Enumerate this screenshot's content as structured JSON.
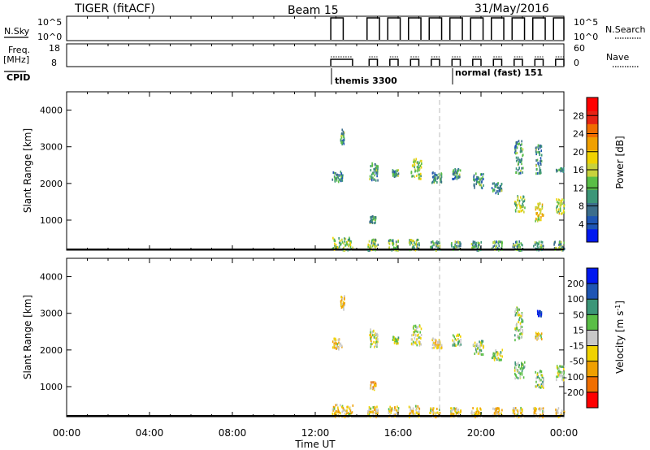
{
  "header": {
    "title": "TIGER (fitACF)",
    "beam": "Beam 15",
    "date": "31/May/2016"
  },
  "control_panels": {
    "nsky_label": "N.Sky",
    "nsearch_label": "N.Search",
    "freq_label_line1": "Freq.",
    "freq_label_line2": "[MHz]",
    "nave_label": "Nave",
    "cpid_label": "CPID",
    "nsky_ticks": [
      "10^5",
      "10^0"
    ],
    "freq_ticks": [
      "18",
      "8"
    ],
    "nave_ticks": [
      "60",
      "0"
    ],
    "cpid_modes": [
      {
        "label": "themis 3300",
        "start_hour": 12.75
      },
      {
        "label": "normal (fast) 151",
        "start_hour": 18.75
      }
    ]
  },
  "chart_data": [
    {
      "type": "heatmap",
      "panel": "power",
      "ylabel": "Slant Range [km]",
      "xlim": [
        0,
        24
      ],
      "ylim": [
        180,
        4500
      ],
      "yticks": [
        1000,
        2000,
        3000,
        4000
      ],
      "colorbar": {
        "label": "Power [dB]",
        "ticks": [
          4,
          8,
          12,
          16,
          20,
          24,
          28
        ],
        "range": [
          0,
          32
        ],
        "colors": [
          "#0018f0",
          "#1e55b4",
          "#3c6e8c",
          "#3c9678",
          "#5abe46",
          "#c8d23c",
          "#f0d200",
          "#f0a000",
          "#f06e00",
          "#e62314",
          "#ff0000"
        ]
      },
      "data_window_hours": [
        12.75,
        24.0
      ],
      "clusters": [
        {
          "t": [
            12.8,
            13.3
          ],
          "r": [
            2050,
            2350
          ],
          "level": 0.3
        },
        {
          "t": [
            13.2,
            13.4
          ],
          "r": [
            3100,
            3500
          ],
          "level": 0.3
        },
        {
          "t": [
            14.6,
            15.0
          ],
          "r": [
            2100,
            2600
          ],
          "level": 0.3
        },
        {
          "t": [
            14.6,
            14.9
          ],
          "r": [
            950,
            1150
          ],
          "level": 0.35
        },
        {
          "t": [
            15.7,
            16.0
          ],
          "r": [
            2200,
            2400
          ],
          "level": 0.3
        },
        {
          "t": [
            16.6,
            17.1
          ],
          "r": [
            2150,
            2700
          ],
          "level": 0.45
        },
        {
          "t": [
            17.6,
            18.1
          ],
          "r": [
            2050,
            2350
          ],
          "level": 0.3
        },
        {
          "t": [
            18.6,
            19.0
          ],
          "r": [
            2150,
            2450
          ],
          "level": 0.3
        },
        {
          "t": [
            19.6,
            20.1
          ],
          "r": [
            1900,
            2300
          ],
          "level": 0.3
        },
        {
          "t": [
            20.5,
            21.0
          ],
          "r": [
            1750,
            2050
          ],
          "level": 0.3
        },
        {
          "t": [
            21.6,
            22.1
          ],
          "r": [
            1250,
            1700
          ],
          "level": 0.45
        },
        {
          "t": [
            21.6,
            22.0
          ],
          "r": [
            2300,
            3200
          ],
          "level": 0.3
        },
        {
          "t": [
            22.6,
            23.0
          ],
          "r": [
            1000,
            1500
          ],
          "level": 0.55
        },
        {
          "t": [
            22.6,
            22.9
          ],
          "r": [
            2300,
            3100
          ],
          "level": 0.3
        },
        {
          "t": [
            23.6,
            24.0
          ],
          "r": [
            1200,
            1600
          ],
          "level": 0.5
        },
        {
          "t": [
            23.6,
            24.0
          ],
          "r": [
            2350,
            2450
          ],
          "level": 0.25
        },
        {
          "t": [
            12.8,
            13.8
          ],
          "r": [
            200,
            550
          ],
          "level": 0.45
        },
        {
          "t": [
            14.5,
            15.0
          ],
          "r": [
            200,
            500
          ],
          "level": 0.4
        },
        {
          "t": [
            15.5,
            16.0
          ],
          "r": [
            200,
            500
          ],
          "level": 0.4
        },
        {
          "t": [
            16.5,
            17.0
          ],
          "r": [
            200,
            500
          ],
          "level": 0.4
        },
        {
          "t": [
            17.5,
            18.0
          ],
          "r": [
            200,
            450
          ],
          "level": 0.35
        },
        {
          "t": [
            18.5,
            19.0
          ],
          "r": [
            200,
            450
          ],
          "level": 0.35
        },
        {
          "t": [
            19.5,
            20.0
          ],
          "r": [
            200,
            450
          ],
          "level": 0.35
        },
        {
          "t": [
            20.5,
            21.0
          ],
          "r": [
            200,
            450
          ],
          "level": 0.35
        },
        {
          "t": [
            21.5,
            22.0
          ],
          "r": [
            200,
            450
          ],
          "level": 0.35
        },
        {
          "t": [
            22.5,
            23.0
          ],
          "r": [
            200,
            450
          ],
          "level": 0.35
        },
        {
          "t": [
            23.5,
            24.0
          ],
          "r": [
            200,
            450
          ],
          "level": 0.35
        }
      ]
    },
    {
      "type": "heatmap",
      "panel": "velocity",
      "ylabel": "Slant Range [km]",
      "xlabel": "Time UT",
      "xlim": [
        0,
        24
      ],
      "ylim": [
        180,
        4500
      ],
      "xticks": [
        "00:00",
        "04:00",
        "08:00",
        "12:00",
        "16:00",
        "20:00",
        "00:00"
      ],
      "yticks": [
        1000,
        2000,
        3000,
        4000
      ],
      "colorbar": {
        "label": "Velocity [m s^-1]",
        "ticks": [
          "200",
          "100",
          "50",
          "15",
          "-15",
          "-50",
          "-100",
          "-200"
        ],
        "colors": [
          "#0018f0",
          "#1e55b4",
          "#3c9678",
          "#5abe46",
          "#c8c8c8",
          "#f0d200",
          "#f0a000",
          "#f06e00",
          "#ff0000"
        ]
      },
      "clusters": [
        {
          "t": [
            12.8,
            13.3
          ],
          "r": [
            2050,
            2350
          ],
          "level": 0.6
        },
        {
          "t": [
            13.2,
            13.4
          ],
          "r": [
            3100,
            3500
          ],
          "level": 0.6
        },
        {
          "t": [
            14.6,
            15.0
          ],
          "r": [
            2100,
            2600
          ],
          "level": 0.5
        },
        {
          "t": [
            14.6,
            14.9
          ],
          "r": [
            950,
            1150
          ],
          "level": 0.7
        },
        {
          "t": [
            15.7,
            16.0
          ],
          "r": [
            2200,
            2400
          ],
          "level": 0.45
        },
        {
          "t": [
            16.6,
            17.1
          ],
          "r": [
            2150,
            2700
          ],
          "level": 0.5
        },
        {
          "t": [
            17.6,
            18.1
          ],
          "r": [
            2050,
            2350
          ],
          "level": 0.65
        },
        {
          "t": [
            18.6,
            19.0
          ],
          "r": [
            2150,
            2450
          ],
          "level": 0.45
        },
        {
          "t": [
            19.6,
            20.1
          ],
          "r": [
            1900,
            2300
          ],
          "level": 0.45
        },
        {
          "t": [
            20.5,
            21.0
          ],
          "r": [
            1750,
            2050
          ],
          "level": 0.45
        },
        {
          "t": [
            21.6,
            22.1
          ],
          "r": [
            1250,
            1700
          ],
          "level": 0.45
        },
        {
          "t": [
            21.6,
            22.0
          ],
          "r": [
            2300,
            3200
          ],
          "level": 0.45
        },
        {
          "t": [
            22.6,
            23.0
          ],
          "r": [
            1000,
            1500
          ],
          "level": 0.45
        },
        {
          "t": [
            22.7,
            22.9
          ],
          "r": [
            2950,
            3100
          ],
          "level": 0.05
        },
        {
          "t": [
            22.6,
            22.9
          ],
          "r": [
            2300,
            2500
          ],
          "level": 0.55
        },
        {
          "t": [
            23.6,
            24.0
          ],
          "r": [
            1200,
            1600
          ],
          "level": 0.45
        },
        {
          "t": [
            12.8,
            13.8
          ],
          "r": [
            200,
            550
          ],
          "level": 0.6
        },
        {
          "t": [
            14.5,
            15.0
          ],
          "r": [
            200,
            500
          ],
          "level": 0.6
        },
        {
          "t": [
            15.5,
            16.0
          ],
          "r": [
            200,
            500
          ],
          "level": 0.6
        },
        {
          "t": [
            16.5,
            17.0
          ],
          "r": [
            200,
            500
          ],
          "level": 0.6
        },
        {
          "t": [
            17.5,
            18.0
          ],
          "r": [
            200,
            450
          ],
          "level": 0.6
        },
        {
          "t": [
            18.5,
            19.0
          ],
          "r": [
            200,
            450
          ],
          "level": 0.6
        },
        {
          "t": [
            19.5,
            20.0
          ],
          "r": [
            200,
            450
          ],
          "level": 0.6
        },
        {
          "t": [
            20.5,
            21.0
          ],
          "r": [
            200,
            450
          ],
          "level": 0.6
        },
        {
          "t": [
            21.5,
            22.0
          ],
          "r": [
            200,
            450
          ],
          "level": 0.6
        },
        {
          "t": [
            22.5,
            23.0
          ],
          "r": [
            200,
            450
          ],
          "level": 0.6
        },
        {
          "t": [
            23.5,
            24.0
          ],
          "r": [
            200,
            450
          ],
          "level": 0.6
        }
      ]
    }
  ]
}
